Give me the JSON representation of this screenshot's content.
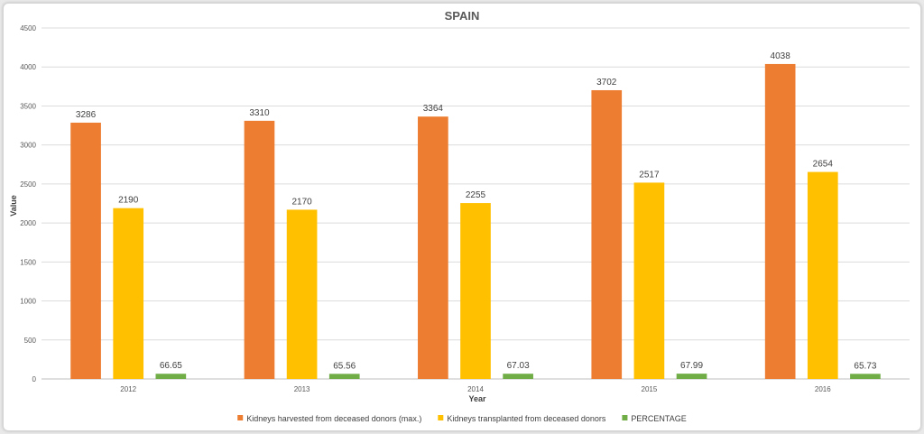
{
  "chart_data": {
    "type": "bar",
    "title": "SPAIN",
    "xlabel": "Year",
    "ylabel": "Value",
    "categories": [
      "2012",
      "2013",
      "2014",
      "2015",
      "2016"
    ],
    "ylim": [
      0,
      4500
    ],
    "yticks": [
      0,
      500,
      1000,
      1500,
      2000,
      2500,
      3000,
      3500,
      4000,
      4500
    ],
    "grid": true,
    "legend_position": "bottom",
    "series": [
      {
        "name": "Kidneys harvested from deceased donors (max.)",
        "color": "#ED7D31",
        "values": [
          3286,
          3310,
          3364,
          3702,
          4038
        ]
      },
      {
        "name": "Kidneys transplanted from deceased donors",
        "color": "#FFC000",
        "values": [
          2190,
          2170,
          2255,
          2517,
          2654
        ]
      },
      {
        "name": "PERCENTAGE",
        "color": "#70AD47",
        "values": [
          66.65,
          65.56,
          67.03,
          67.99,
          65.73
        ]
      }
    ]
  }
}
